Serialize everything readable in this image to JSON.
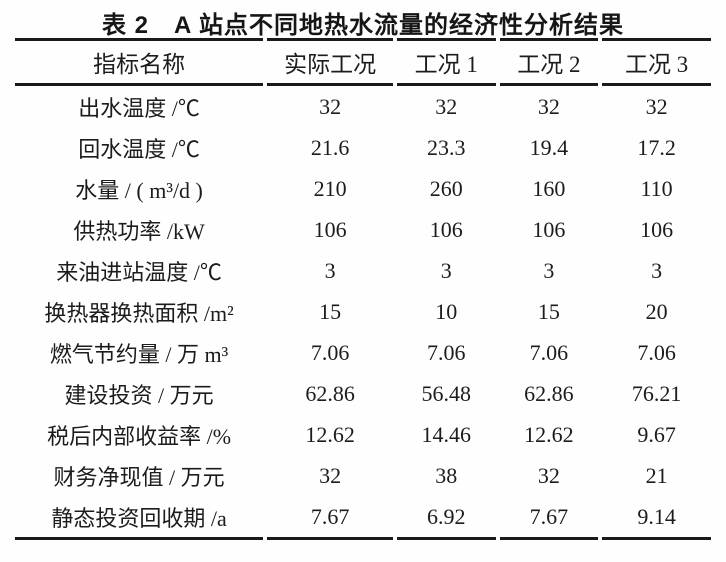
{
  "page": {
    "background": "#fefefe",
    "text_color": "#1c1c1c",
    "rule_color": "#1a1a1a"
  },
  "title": "表 2　A 站点不同地热水流量的经济性分析结果",
  "table": {
    "headers": [
      "指标名称",
      "实际工况",
      "工况 1",
      "工况 2",
      "工况 3"
    ],
    "rows": [
      {
        "label": "出水温度 /℃",
        "values": [
          "32",
          "32",
          "32",
          "32"
        ]
      },
      {
        "label": "回水温度 /℃",
        "values": [
          "21.6",
          "23.3",
          "19.4",
          "17.2"
        ]
      },
      {
        "label": "水量 / ( m³/d )",
        "values": [
          "210",
          "260",
          "160",
          "110"
        ]
      },
      {
        "label": "供热功率 /kW",
        "values": [
          "106",
          "106",
          "106",
          "106"
        ]
      },
      {
        "label": "来油进站温度 /℃",
        "values": [
          "3",
          "3",
          "3",
          "3"
        ]
      },
      {
        "label": "换热器换热面积 /m²",
        "values": [
          "15",
          "10",
          "15",
          "20"
        ]
      },
      {
        "label": "燃气节约量 / 万 m³",
        "values": [
          "7.06",
          "7.06",
          "7.06",
          "7.06"
        ]
      },
      {
        "label": "建设投资 / 万元",
        "values": [
          "62.86",
          "56.48",
          "62.86",
          "76.21"
        ]
      },
      {
        "label": "税后内部收益率 /%",
        "values": [
          "12.62",
          "14.46",
          "12.62",
          "9.67"
        ]
      },
      {
        "label": "财务净现值 / 万元",
        "values": [
          "32",
          "38",
          "32",
          "21"
        ]
      },
      {
        "label": "静态投资回收期 /a",
        "values": [
          "7.67",
          "6.92",
          "7.67",
          "9.14"
        ]
      }
    ]
  }
}
